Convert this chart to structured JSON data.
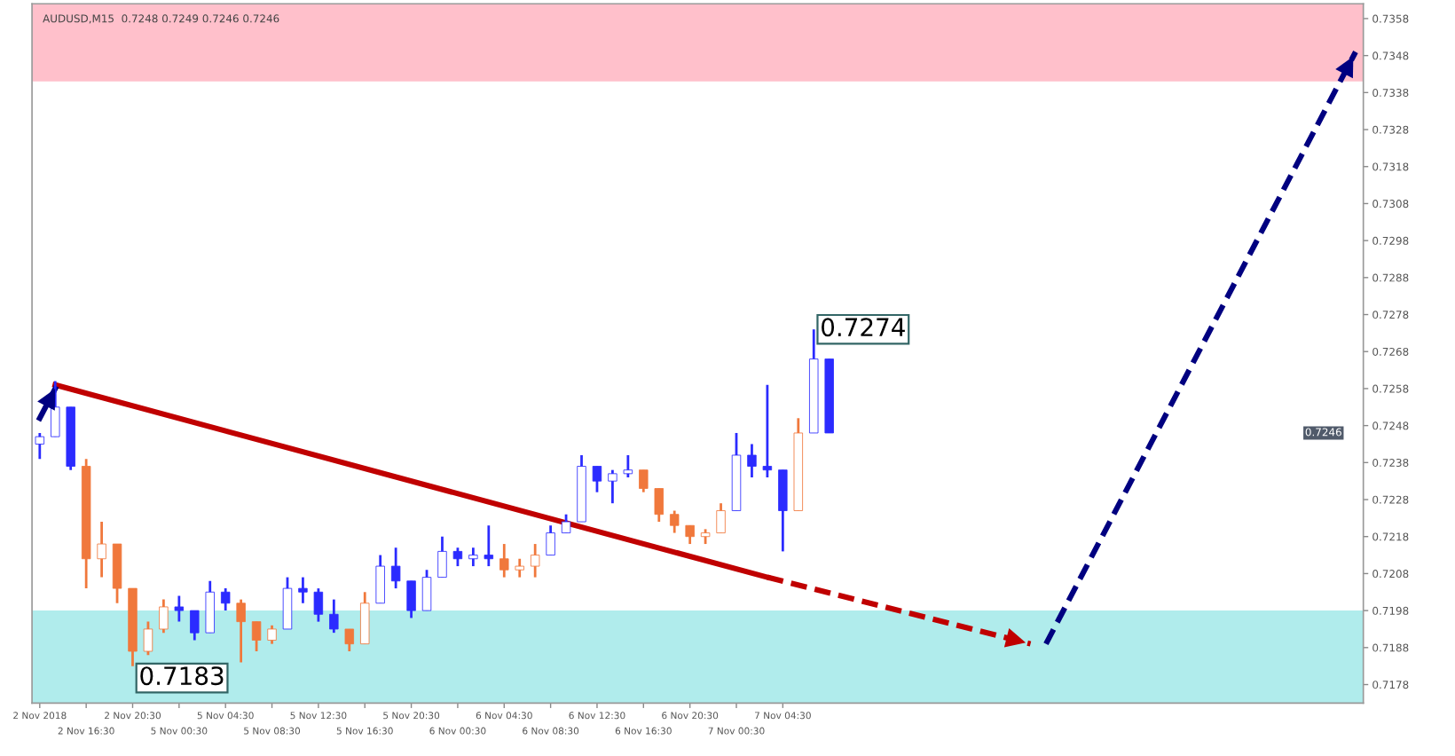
{
  "chart_data": {
    "type": "candlestick",
    "title": "AUDUSD,M15  0.7248 0.7249 0.7246 0.7246",
    "categories": [
      "2 Nov 2018",
      null,
      null,
      "2 Nov 16:30",
      null,
      null,
      "2 Nov 20:30",
      null,
      null,
      "5 Nov 00:30",
      null,
      null,
      "5 Nov 04:30",
      null,
      null,
      "5 Nov 08:30",
      null,
      null,
      "5 Nov 12:30",
      null,
      null,
      "5 Nov 16:30",
      null,
      null,
      "5 Nov 20:30",
      null,
      null,
      "6 Nov 00:30",
      null,
      null,
      "6 Nov 04:30",
      null,
      null,
      "6 Nov 08:30",
      null,
      null,
      "6 Nov 12:30",
      null,
      null,
      "6 Nov 16:30",
      null,
      null,
      "6 Nov 20:30",
      null,
      null,
      "7 Nov 00:30",
      null,
      null,
      "7 Nov 04:30",
      null,
      null,
      null,
      null,
      null,
      null,
      null,
      null,
      null,
      null,
      null,
      null,
      null,
      null,
      null,
      null,
      null,
      null,
      null,
      null,
      null,
      null,
      null,
      null,
      null,
      null,
      null,
      null,
      null,
      null,
      null,
      null,
      null,
      null,
      null,
      null,
      null
    ],
    "ylim": [
      0.7173,
      0.7362
    ],
    "yticks": [
      0.7178,
      0.7188,
      0.7198,
      0.7208,
      0.7218,
      0.7228,
      0.7238,
      0.7248,
      0.7258,
      0.7268,
      0.7278,
      0.7288,
      0.7298,
      0.7308,
      0.7318,
      0.7328,
      0.7338,
      0.7348,
      0.7358
    ],
    "grid": false,
    "bands": [
      {
        "axis": "y",
        "from": 0.7341,
        "to": 0.7362,
        "color": "#ffc0cb"
      },
      {
        "axis": "y",
        "from": 0.7173,
        "to": 0.7198,
        "color": "#b0ecec"
      }
    ],
    "annotations": [
      "0.7274",
      "0.7183",
      "0.7246"
    ],
    "series": [
      {
        "type": "candlestick",
        "ohlc": [
          [
            0.7243,
            0.7246,
            0.7239,
            0.7245
          ],
          [
            0.7245,
            0.726,
            0.7245,
            0.7253
          ],
          [
            0.7253,
            0.7253,
            0.7236,
            0.7237
          ],
          [
            0.7237,
            0.7239,
            0.7204,
            0.7212
          ],
          [
            0.7212,
            0.7222,
            0.7207,
            0.7216
          ],
          [
            0.7216,
            0.7216,
            0.72,
            0.7204
          ],
          [
            0.7204,
            0.7204,
            0.7183,
            0.7187
          ],
          [
            0.7187,
            0.7195,
            0.7186,
            0.7193
          ],
          [
            0.7193,
            0.7201,
            0.7192,
            0.7199
          ],
          [
            0.7199,
            0.7202,
            0.7195,
            0.7198
          ],
          [
            0.7198,
            0.7198,
            0.719,
            0.7192
          ],
          [
            0.7192,
            0.7206,
            0.7192,
            0.7203
          ],
          [
            0.7203,
            0.7204,
            0.7198,
            0.72
          ],
          [
            0.72,
            0.7201,
            0.7184,
            0.7195
          ],
          [
            0.7195,
            0.7195,
            0.7187,
            0.719
          ],
          [
            0.719,
            0.7194,
            0.7189,
            0.7193
          ],
          [
            0.7193,
            0.7207,
            0.7193,
            0.7204
          ],
          [
            0.7204,
            0.7207,
            0.72,
            0.7203
          ],
          [
            0.7203,
            0.7204,
            0.7195,
            0.7197
          ],
          [
            0.7197,
            0.7201,
            0.7192,
            0.7193
          ],
          [
            0.7193,
            0.7193,
            0.7187,
            0.7189
          ],
          [
            0.7189,
            0.7203,
            0.7189,
            0.72
          ],
          [
            0.72,
            0.7213,
            0.72,
            0.721
          ],
          [
            0.721,
            0.7215,
            0.7204,
            0.7206
          ],
          [
            0.7206,
            0.7206,
            0.7196,
            0.7198
          ],
          [
            0.7198,
            0.7209,
            0.7198,
            0.7207
          ],
          [
            0.7207,
            0.7218,
            0.7207,
            0.7214
          ],
          [
            0.7214,
            0.7215,
            0.721,
            0.7212
          ],
          [
            0.7212,
            0.7215,
            0.721,
            0.7213
          ],
          [
            0.7213,
            0.7221,
            0.721,
            0.7212
          ],
          [
            0.7212,
            0.7216,
            0.7207,
            0.7209
          ],
          [
            0.7209,
            0.7212,
            0.7207,
            0.721
          ],
          [
            0.721,
            0.7216,
            0.7207,
            0.7213
          ],
          [
            0.7213,
            0.7221,
            0.7213,
            0.7219
          ],
          [
            0.7219,
            0.7224,
            0.7219,
            0.7222
          ],
          [
            0.7222,
            0.724,
            0.7222,
            0.7237
          ],
          [
            0.7237,
            0.7237,
            0.723,
            0.7233
          ],
          [
            0.7233,
            0.7236,
            0.7227,
            0.7235
          ],
          [
            0.7235,
            0.724,
            0.7234,
            0.7236
          ],
          [
            0.7236,
            0.7236,
            0.723,
            0.7231
          ],
          [
            0.7231,
            0.7231,
            0.7222,
            0.7224
          ],
          [
            0.7224,
            0.7225,
            0.7219,
            0.7221
          ],
          [
            0.7221,
            0.7221,
            0.7216,
            0.7218
          ],
          [
            0.7218,
            0.722,
            0.7216,
            0.7219
          ],
          [
            0.7219,
            0.7227,
            0.7219,
            0.7225
          ],
          [
            0.7225,
            0.7246,
            0.7225,
            0.724
          ],
          [
            0.724,
            0.7243,
            0.7234,
            0.7237
          ],
          [
            0.7237,
            0.7259,
            0.7234,
            0.7236
          ],
          [
            0.7236,
            0.7236,
            0.7214,
            0.7225
          ],
          [
            0.7225,
            0.725,
            0.7225,
            0.7246
          ],
          [
            0.7246,
            0.7274,
            0.7246,
            0.7266
          ],
          [
            0.7266,
            0.7266,
            0.7246,
            0.7246
          ],
          null,
          null,
          null,
          null,
          null,
          null,
          null,
          null,
          null,
          null,
          null,
          null,
          null,
          null,
          null,
          null,
          null,
          null,
          null,
          null,
          null,
          null,
          null,
          null,
          null,
          null,
          null,
          null,
          null,
          null,
          null,
          null,
          null,
          null
        ],
        "colors": [
          "#2b2bff",
          "#2b2bff",
          "#2b2bff",
          "#f0783c",
          "#f0783c",
          "#f0783c",
          "#f0783c",
          "#f0783c",
          "#f0783c",
          "#2b2bff",
          "#2b2bff",
          "#2b2bff",
          "#2b2bff",
          "#f0783c",
          "#f0783c",
          "#f0783c",
          "#2b2bff",
          "#2b2bff",
          "#2b2bff",
          "#2b2bff",
          "#f0783c",
          "#f0783c",
          "#2b2bff",
          "#2b2bff",
          "#2b2bff",
          "#2b2bff",
          "#2b2bff",
          "#2b2bff",
          "#2b2bff",
          "#2b2bff",
          "#f0783c",
          "#f0783c",
          "#f0783c",
          "#2b2bff",
          "#2b2bff",
          "#2b2bff",
          "#2b2bff",
          "#2b2bff",
          "#2b2bff",
          "#f0783c",
          "#f0783c",
          "#f0783c",
          "#f0783c",
          "#f0783c",
          "#f0783c",
          "#2b2bff",
          "#2b2bff",
          "#2b2bff",
          "#2b2bff",
          "#f0783c",
          "#2b2bff",
          "#2b2bff",
          null,
          null,
          null,
          null,
          null,
          null,
          null,
          null,
          null,
          null,
          null,
          null,
          null,
          null,
          null,
          null,
          null,
          null,
          null,
          null,
          null,
          null,
          null,
          null,
          null,
          null,
          null,
          null,
          null,
          null,
          null,
          null,
          null,
          null
        ]
      },
      {
        "type": "line",
        "color": "#c00000",
        "values": [
          null,
          0.7259,
          null,
          null,
          null,
          null,
          null,
          null,
          null,
          null,
          null,
          null,
          null,
          null,
          null,
          null,
          null,
          null,
          null,
          null,
          null,
          null,
          null,
          null,
          null,
          null,
          null,
          null,
          null,
          null,
          null,
          null,
          null,
          null,
          null,
          null,
          null,
          null,
          null,
          null,
          null,
          null,
          null,
          null,
          null,
          null,
          null,
          0.7207,
          null,
          null,
          null,
          null,
          null,
          null,
          null,
          null,
          null,
          null,
          null,
          null,
          null,
          null,
          null,
          null,
          null,
          null,
          null,
          null,
          null,
          null,
          null,
          null,
          null,
          null,
          null,
          null,
          null,
          null,
          null,
          null,
          null,
          null,
          null,
          null,
          null,
          null
        ]
      },
      {
        "type": "line",
        "color": "#c00000",
        "line_style": "dashed",
        "values": [
          null,
          null,
          null,
          null,
          null,
          null,
          null,
          null,
          null,
          null,
          null,
          null,
          null,
          null,
          null,
          null,
          null,
          null,
          null,
          null,
          null,
          null,
          null,
          null,
          null,
          null,
          null,
          null,
          null,
          null,
          null,
          null,
          null,
          null,
          null,
          null,
          null,
          null,
          null,
          null,
          null,
          null,
          null,
          null,
          null,
          null,
          null,
          0.7207,
          null,
          null,
          null,
          null,
          null,
          null,
          null,
          null,
          null,
          null,
          null,
          null,
          null,
          null,
          null,
          null,
          0.7189,
          null,
          null,
          null,
          null,
          null,
          null,
          null,
          null,
          null,
          null,
          null,
          null,
          null,
          null,
          null,
          null,
          null,
          null,
          null,
          null,
          null
        ]
      },
      {
        "type": "line",
        "color": "#000080",
        "line_style": "dashed",
        "values": [
          null,
          null,
          null,
          null,
          null,
          null,
          null,
          null,
          null,
          null,
          null,
          null,
          null,
          null,
          null,
          null,
          null,
          null,
          null,
          null,
          null,
          null,
          null,
          null,
          null,
          null,
          null,
          null,
          null,
          null,
          null,
          null,
          null,
          null,
          null,
          null,
          null,
          null,
          null,
          null,
          null,
          null,
          null,
          null,
          null,
          null,
          null,
          null,
          null,
          null,
          null,
          null,
          null,
          null,
          null,
          null,
          null,
          null,
          null,
          null,
          null,
          null,
          null,
          null,
          null,
          0.7189,
          null,
          null,
          null,
          null,
          null,
          null,
          null,
          null,
          null,
          null,
          null,
          null,
          null,
          null,
          null,
          null,
          null,
          null,
          null,
          0.7349
        ]
      },
      {
        "type": "line",
        "color": "#000080",
        "line_style": "solid",
        "values": [
          0.725,
          0.7258,
          null,
          null,
          null,
          null,
          null,
          null,
          null,
          null,
          null,
          null,
          null,
          null,
          null,
          null,
          null,
          null,
          null,
          null,
          null,
          null,
          null,
          null,
          null,
          null,
          null,
          null,
          null,
          null,
          null,
          null,
          null,
          null,
          null,
          null,
          null,
          null,
          null,
          null,
          null,
          null,
          null,
          null,
          null,
          null,
          null,
          null,
          null,
          null,
          null,
          null,
          null,
          null,
          null,
          null,
          null,
          null,
          null,
          null,
          null,
          null,
          null,
          null,
          null,
          null,
          null,
          null,
          null,
          null,
          null,
          null,
          null,
          null,
          null,
          null,
          null,
          null,
          null,
          null,
          null,
          null,
          null,
          null,
          null,
          null
        ]
      }
    ]
  }
}
